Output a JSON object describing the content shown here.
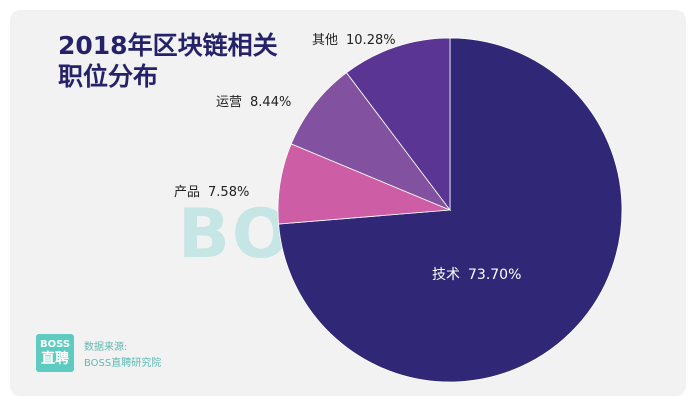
{
  "chart_data": {
    "type": "pie",
    "title": "2018年区块链相关职位分布",
    "title_lines": [
      "2018年区块链相关",
      "职位分布"
    ],
    "slices": [
      {
        "label": "技术",
        "value": 73.7,
        "display": "73.70%",
        "color": "#302876"
      },
      {
        "label": "产品",
        "value": 7.58,
        "display": "7.58%",
        "color": "#cd5da5"
      },
      {
        "label": "运营",
        "value": 8.44,
        "display": "8.44%",
        "color": "#82519f"
      },
      {
        "label": "其他",
        "value": 10.28,
        "display": "10.28%",
        "color": "#5a3593"
      }
    ]
  },
  "watermark": "BOSS 直聘",
  "logo": {
    "line1": "BOSS",
    "line2": "直聘"
  },
  "source": {
    "label": "数据来源:",
    "name": "BOSS直聘研究院"
  }
}
